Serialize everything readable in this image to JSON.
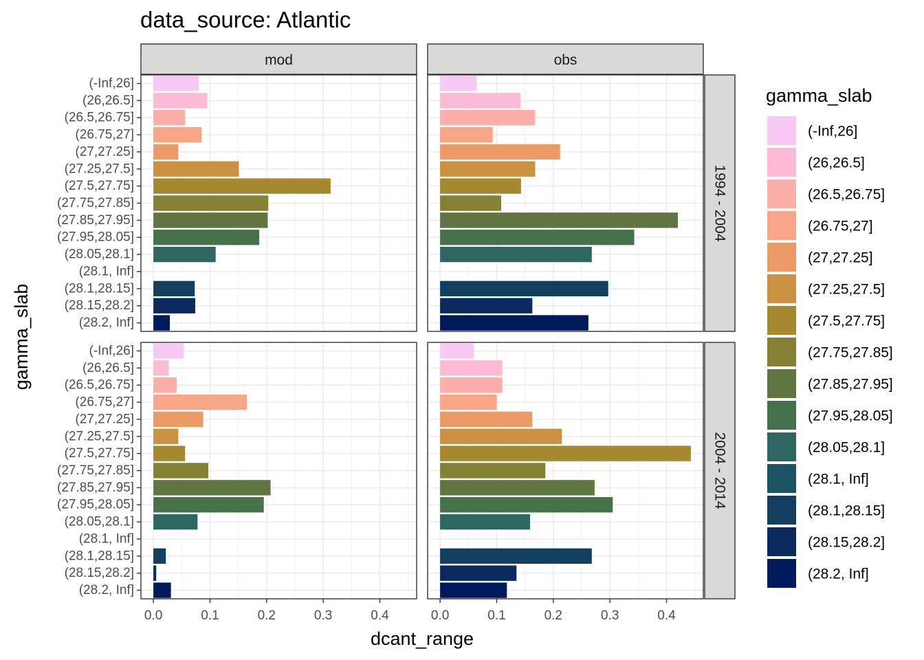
{
  "chart_data": {
    "type": "bar",
    "orientation": "horizontal",
    "title": "data_source: Atlantic",
    "xlabel": "dcant_range",
    "ylabel": "gamma_slab",
    "xlim": [
      -0.022,
      0.465
    ],
    "x_ticks": [
      "0.0",
      "0.1",
      "0.2",
      "0.3",
      "0.4"
    ],
    "grid": true,
    "legend_position": "right",
    "legend_title": "gamma_slab",
    "columns": [
      "mod",
      "obs"
    ],
    "rows": [
      "1994 - 2004",
      "2004 - 2014"
    ],
    "categories": [
      "(-Inf,26]",
      "(26,26.5]",
      "(26.5,26.75]",
      "(26.75,27]",
      "(27,27.25]",
      "(27.25,27.5]",
      "(27.5,27.75]",
      "(27.75,27.85]",
      "(27.85,27.95]",
      "(27.95,28.05]",
      "(28.05,28.1]",
      "(28.1, Inf]",
      "(28.1,28.15]",
      "(28.15,28.2]",
      "(28.2, Inf]"
    ],
    "colors": [
      "#F9C9F6",
      "#FDBAD7",
      "#FCAFA8",
      "#F9A587",
      "#EC9A66",
      "#C99140",
      "#A5882F",
      "#858134",
      "#607541",
      "#46714B",
      "#2E6662",
      "#1A5363",
      "#123E60",
      "#0B2A5D",
      "#001A5B"
    ],
    "panels": [
      {
        "column": "mod",
        "row": "1994 - 2004",
        "values": [
          0.08,
          0.095,
          0.056,
          0.085,
          0.044,
          0.151,
          0.313,
          0.203,
          0.202,
          0.187,
          0.11,
          null,
          0.073,
          0.074,
          0.029
        ]
      },
      {
        "column": "obs",
        "row": "1994 - 2004",
        "values": [
          0.065,
          0.142,
          0.168,
          0.093,
          0.212,
          0.168,
          0.143,
          0.108,
          0.42,
          0.343,
          0.268,
          null,
          0.297,
          0.163,
          0.262
        ]
      },
      {
        "column": "mod",
        "row": "2004 - 2014",
        "values": [
          0.054,
          0.027,
          0.041,
          0.165,
          0.088,
          0.044,
          0.056,
          0.097,
          0.207,
          0.195,
          0.078,
          null,
          0.022,
          0.005,
          0.031
        ]
      },
      {
        "column": "obs",
        "row": "2004 - 2014",
        "values": [
          0.06,
          0.11,
          0.11,
          0.1,
          0.163,
          0.215,
          0.443,
          0.186,
          0.273,
          0.305,
          0.159,
          null,
          0.268,
          0.135,
          0.118
        ]
      }
    ]
  }
}
